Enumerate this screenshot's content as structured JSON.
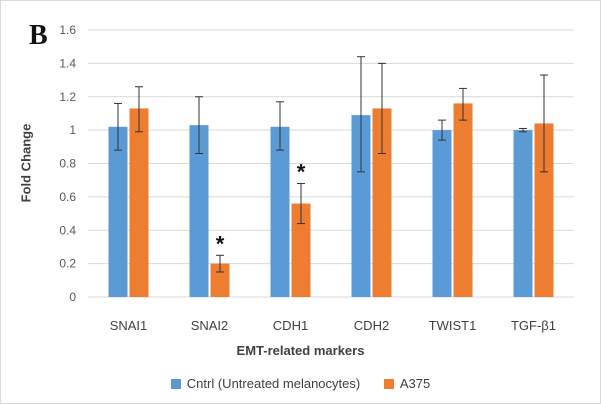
{
  "panel_label": "B",
  "chart_data": {
    "type": "bar",
    "categories": [
      "SNAI1",
      "SNAI2",
      "CDH1",
      "CDH2",
      "TWIST1",
      "TGF-β1"
    ],
    "series": [
      {
        "name": "Cntrl (Untreated melanocytes)",
        "color": "#5b9bd5",
        "values": [
          1.02,
          1.03,
          1.02,
          1.09,
          1.0,
          1.0
        ],
        "error_low": [
          0.88,
          0.86,
          0.88,
          0.75,
          0.94,
          0.99
        ],
        "error_high": [
          1.16,
          1.2,
          1.17,
          1.44,
          1.06,
          1.01
        ]
      },
      {
        "name": "A375",
        "color": "#ed7d31",
        "values": [
          1.13,
          0.2,
          0.56,
          1.13,
          1.16,
          1.04
        ],
        "error_low": [
          0.99,
          0.15,
          0.44,
          0.86,
          1.06,
          0.75
        ],
        "error_high": [
          1.26,
          0.25,
          0.68,
          1.4,
          1.25,
          1.33
        ]
      }
    ],
    "significance_markers": [
      {
        "category": "SNAI2",
        "series": "A375",
        "label": "*"
      },
      {
        "category": "CDH1",
        "series": "A375",
        "label": "*"
      }
    ],
    "xlabel": "EMT-related markers",
    "ylabel": "Fold Change",
    "ylim": [
      0,
      1.6
    ],
    "yticks": [
      "0",
      "0.2",
      "0.4",
      "0.6",
      "0.8",
      "1",
      "1.2",
      "1.4",
      "1.6"
    ],
    "grid": true,
    "legend_position": "bottom"
  }
}
